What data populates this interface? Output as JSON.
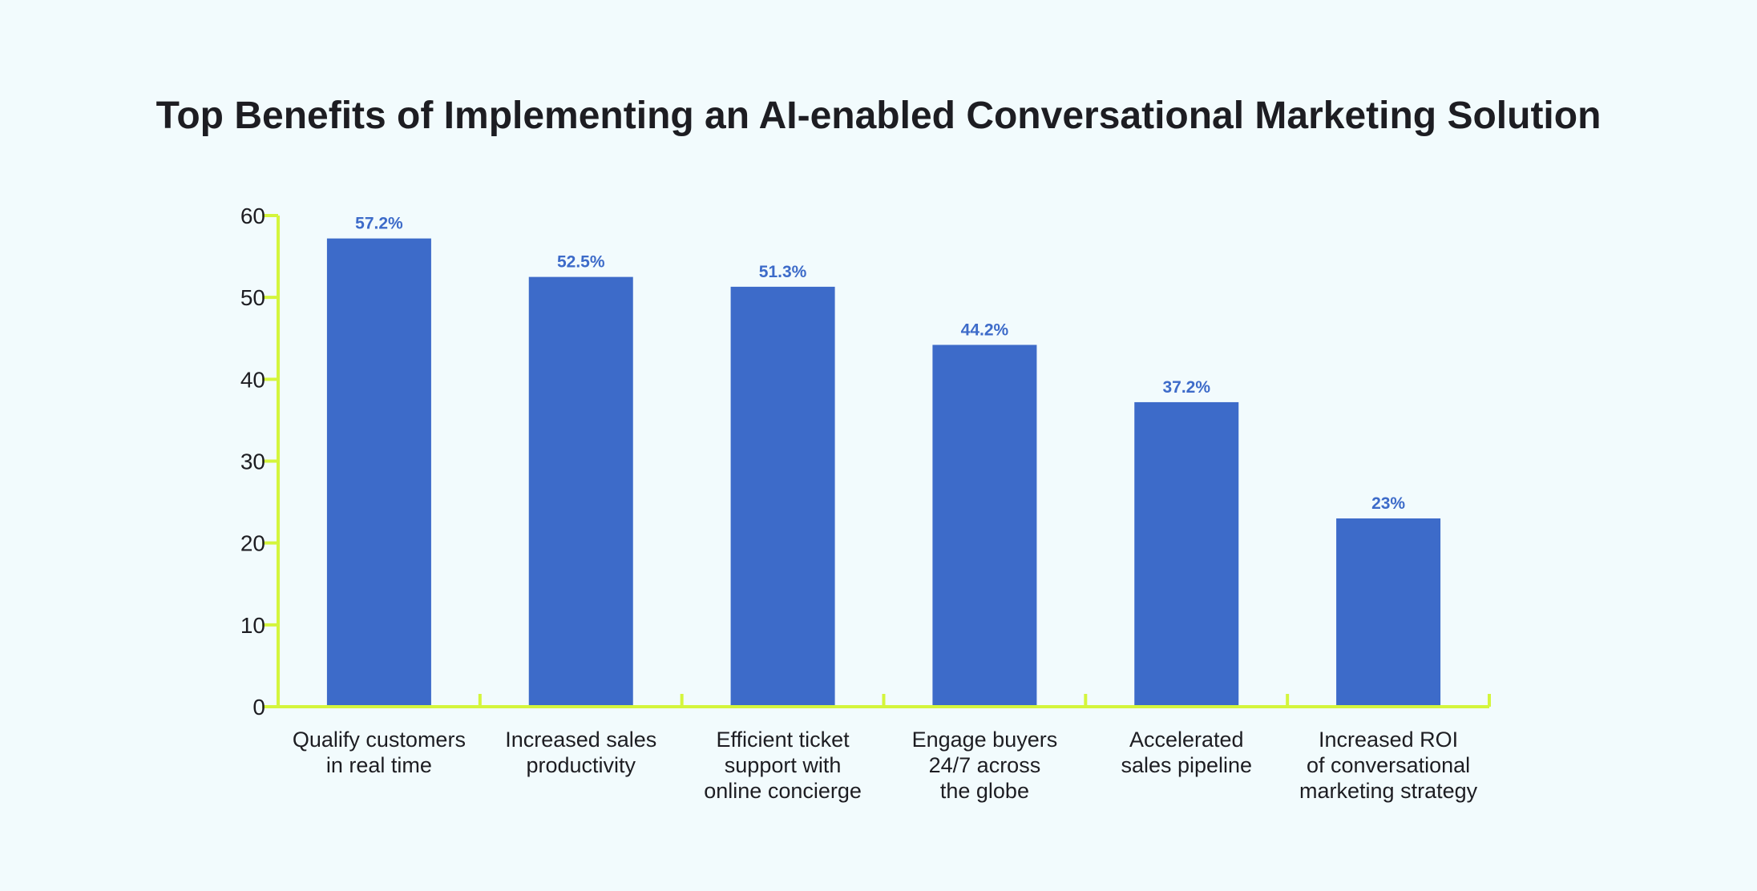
{
  "chart_data": {
    "type": "bar",
    "title": "Top Benefits of Implementing an AI-enabled Conversational Marketing Solution",
    "xlabel": "",
    "ylabel": "",
    "ylim": [
      0,
      60
    ],
    "yticks": [
      "0",
      "10",
      "20",
      "30",
      "40",
      "50",
      "60"
    ],
    "categories": [
      [
        "Qualify customers",
        "in real time"
      ],
      [
        "Increased sales",
        "productivity"
      ],
      [
        "Efficient ticket",
        "support with",
        "online concierge"
      ],
      [
        "Engage buyers",
        "24/7 across",
        "the globe"
      ],
      [
        "Accelerated",
        "sales pipeline"
      ],
      [
        "Increased ROI",
        "of conversational",
        "marketing strategy"
      ]
    ],
    "values": [
      57.2,
      52.5,
      51.3,
      44.2,
      37.2,
      23
    ],
    "data_labels": [
      "57.2%",
      "52.5%",
      "51.3%",
      "44.2%",
      "37.2%",
      "23%"
    ],
    "grid": false,
    "legend": "none",
    "colors": {
      "bar": "#3d6bc9",
      "axis": "#d4f53c",
      "label": "#3d6bc9",
      "text": "#1d1d22",
      "background": "#f2fbfd"
    }
  }
}
